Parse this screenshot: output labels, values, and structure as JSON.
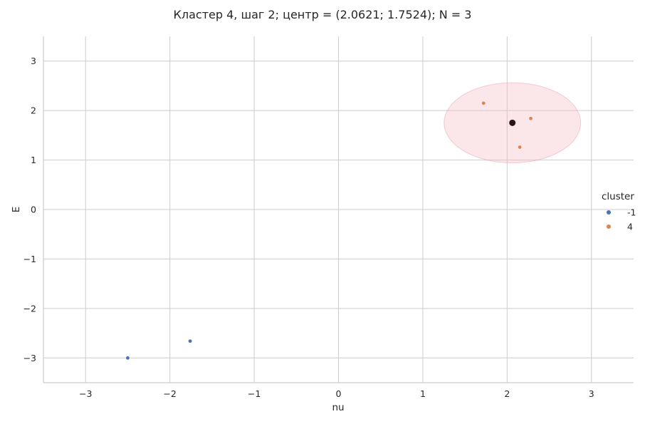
{
  "chart_data": {
    "type": "scatter",
    "title": "Кластер 4, шаг 2; центр = (2.0621; 1.7524); N = 3",
    "xlabel": "nu",
    "ylabel": "E",
    "xlim": [
      -3.5,
      3.5
    ],
    "ylim": [
      -3.5,
      3.5
    ],
    "xticks": [
      -3,
      -2,
      -1,
      0,
      1,
      2,
      3
    ],
    "yticks": [
      -3,
      -2,
      -1,
      0,
      1,
      2,
      3
    ],
    "xtick_labels": [
      "−3",
      "−2",
      "−1",
      "0",
      "1",
      "2",
      "3"
    ],
    "ytick_labels": [
      "−3",
      "−2",
      "−1",
      "0",
      "1",
      "2",
      "3"
    ],
    "grid": true,
    "legend": {
      "title": "cluster",
      "placement": "right",
      "entries": [
        {
          "label": "-1",
          "color": "#4c72b0"
        },
        {
          "label": "4",
          "color": "#dd8452"
        }
      ]
    },
    "series": [
      {
        "name": "-1",
        "color": "#4c72b0",
        "points": [
          {
            "x": -2.5,
            "y": -3.0
          },
          {
            "x": -1.76,
            "y": -2.66
          }
        ]
      },
      {
        "name": "4",
        "color": "#dd8452",
        "points": [
          {
            "x": 1.72,
            "y": 2.15
          },
          {
            "x": 2.28,
            "y": 1.84
          },
          {
            "x": 2.15,
            "y": 1.26
          }
        ]
      }
    ],
    "center": {
      "x": 2.0621,
      "y": 1.7524,
      "color": "#2b1418"
    },
    "circle": {
      "cx": 2.0621,
      "cy": 1.7524,
      "radius": 0.81,
      "fill": "#f4b6c2"
    }
  }
}
